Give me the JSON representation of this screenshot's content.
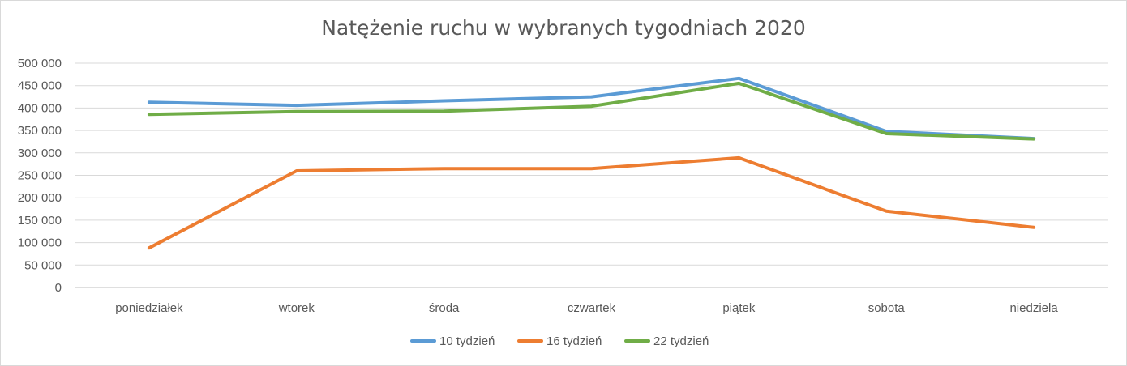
{
  "chart_data": {
    "type": "line",
    "title": "Natężenie ruchu w wybranych tygodniach 2020",
    "categories": [
      "poniedziałek",
      "wtorek",
      "środa",
      "czwartek",
      "piątek",
      "sobota",
      "niedziela"
    ],
    "ylim": [
      0,
      500000
    ],
    "yticks": [
      0,
      50000,
      100000,
      150000,
      200000,
      250000,
      300000,
      350000,
      400000,
      450000,
      500000
    ],
    "ytick_labels": [
      "0",
      "50 000",
      "100 000",
      "150 000",
      "200 000",
      "250 000",
      "300 000",
      "350 000",
      "400 000",
      "450 000",
      "500 000"
    ],
    "grid": true,
    "legend_position": "bottom",
    "series": [
      {
        "name": "10 tydzień",
        "color": "#5b9bd5",
        "values": [
          413000,
          406000,
          416000,
          425000,
          466000,
          348000,
          332000
        ]
      },
      {
        "name": "16 tydzień",
        "color": "#ed7d31",
        "values": [
          88000,
          260000,
          265000,
          265000,
          289000,
          170000,
          134000
        ]
      },
      {
        "name": "22 tydzień",
        "color": "#70ad47",
        "values": [
          386000,
          392000,
          393000,
          404000,
          455000,
          343000,
          331000
        ]
      }
    ]
  }
}
